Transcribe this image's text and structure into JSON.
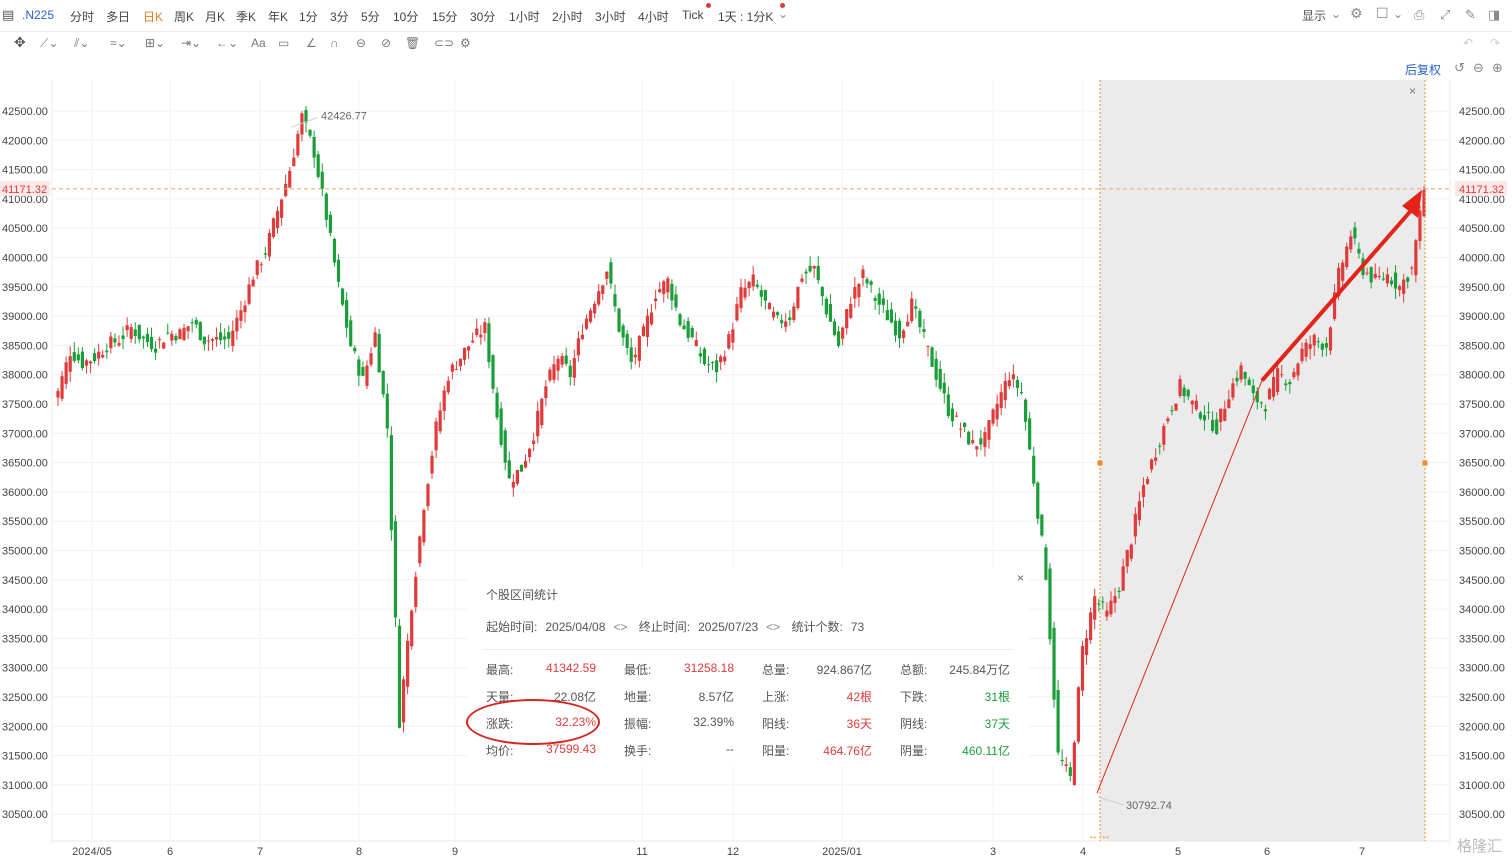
{
  "topbar": {
    "symbol": ".N225",
    "periods": [
      "分时",
      "多日",
      "日K",
      "周K",
      "月K",
      "季K",
      "年K",
      "1分",
      "3分",
      "5分",
      "10分",
      "15分",
      "30分",
      "1小时",
      "2小时",
      "3小时",
      "4小时",
      "Tick",
      "1天 : 1分K"
    ],
    "active_period": "日K",
    "display_label": "显示"
  },
  "toolbar": {
    "restore_label": "后复权"
  },
  "chart_data": {
    "type": "candlestick",
    "x_ticks": [
      "2024/05",
      "6",
      "7",
      "8",
      "9",
      "11",
      "12",
      "2025/01",
      "3",
      "4",
      "5",
      "6",
      "7"
    ],
    "y_ticks": [
      30500,
      31000,
      31500,
      32000,
      32500,
      33000,
      33500,
      34000,
      34500,
      35000,
      35500,
      36000,
      36500,
      37000,
      37500,
      38000,
      38500,
      39000,
      39500,
      40000,
      40500,
      41000,
      41500,
      42000,
      42500
    ],
    "ylim": [
      30300,
      42750
    ],
    "current_price": "41171.32",
    "high_annotation": "42426.77",
    "low_annotation": "30792.74",
    "selected_range": [
      "2025/04/08",
      "2025/07/23"
    ],
    "close_path": [
      [
        0,
        37700
      ],
      [
        1,
        38400
      ],
      [
        2,
        38200
      ],
      [
        3,
        38300
      ],
      [
        4,
        38500
      ],
      [
        5,
        38600
      ],
      [
        6,
        38800
      ],
      [
        7,
        38600
      ],
      [
        8,
        38500
      ],
      [
        9,
        38700
      ],
      [
        10,
        38700
      ],
      [
        11,
        38900
      ],
      [
        12,
        38600
      ],
      [
        13,
        38600
      ],
      [
        14,
        38600
      ],
      [
        15,
        39100
      ],
      [
        16,
        39700
      ],
      [
        17,
        40100
      ],
      [
        18,
        40800
      ],
      [
        19,
        41500
      ],
      [
        20,
        42400
      ],
      [
        21,
        41800
      ],
      [
        22,
        40700
      ],
      [
        23,
        39500
      ],
      [
        24,
        38500
      ],
      [
        25,
        37900
      ],
      [
        26,
        38700
      ],
      [
        27,
        37100
      ],
      [
        28,
        32100
      ],
      [
        29,
        34100
      ],
      [
        30,
        35800
      ],
      [
        31,
        37100
      ],
      [
        32,
        38000
      ],
      [
        33,
        38300
      ],
      [
        34,
        38600
      ],
      [
        35,
        38800
      ],
      [
        36,
        37300
      ],
      [
        37,
        36200
      ],
      [
        38,
        36400
      ],
      [
        39,
        37000
      ],
      [
        40,
        37800
      ],
      [
        41,
        38300
      ],
      [
        42,
        38000
      ],
      [
        43,
        38800
      ],
      [
        44,
        39300
      ],
      [
        45,
        39800
      ],
      [
        46,
        38800
      ],
      [
        47,
        38200
      ],
      [
        48,
        38700
      ],
      [
        49,
        39400
      ],
      [
        50,
        39600
      ],
      [
        51,
        38900
      ],
      [
        52,
        38600
      ],
      [
        53,
        38200
      ],
      [
        54,
        38100
      ],
      [
        55,
        38600
      ],
      [
        56,
        39400
      ],
      [
        57,
        39600
      ],
      [
        58,
        39200
      ],
      [
        59,
        38900
      ],
      [
        60,
        39000
      ],
      [
        61,
        39700
      ],
      [
        62,
        39800
      ],
      [
        63,
        39100
      ],
      [
        64,
        38500
      ],
      [
        65,
        39300
      ],
      [
        66,
        39700
      ],
      [
        67,
        39300
      ],
      [
        68,
        39000
      ],
      [
        69,
        38700
      ],
      [
        70,
        39200
      ],
      [
        71,
        38600
      ],
      [
        72,
        38000
      ],
      [
        73,
        37400
      ],
      [
        74,
        37100
      ],
      [
        75,
        36800
      ],
      [
        76,
        36900
      ],
      [
        77,
        37500
      ],
      [
        78,
        38000
      ],
      [
        79,
        37700
      ],
      [
        80,
        36200
      ],
      [
        81,
        34600
      ],
      [
        82,
        31500
      ],
      [
        83,
        31100
      ],
      [
        84,
        33300
      ],
      [
        85,
        34200
      ],
      [
        86,
        33900
      ],
      [
        87,
        34400
      ],
      [
        88,
        35200
      ],
      [
        89,
        36100
      ],
      [
        90,
        36700
      ],
      [
        91,
        37300
      ],
      [
        92,
        37800
      ],
      [
        93,
        37500
      ],
      [
        94,
        37300
      ],
      [
        95,
        37100
      ],
      [
        96,
        37700
      ],
      [
        97,
        38100
      ],
      [
        98,
        37600
      ],
      [
        99,
        37500
      ],
      [
        100,
        38000
      ],
      [
        101,
        37900
      ],
      [
        102,
        38400
      ],
      [
        103,
        38600
      ],
      [
        104,
        38500
      ],
      [
        105,
        39700
      ],
      [
        106,
        40400
      ],
      [
        107,
        39800
      ],
      [
        108,
        39600
      ],
      [
        109,
        39700
      ],
      [
        110,
        39500
      ],
      [
        111,
        39800
      ],
      [
        112,
        41171
      ]
    ],
    "series": []
  },
  "stats": {
    "title": "个股区间统计",
    "start_label": "起始时间:",
    "start_value": "2025/04/08",
    "end_label": "终止时间:",
    "end_value": "2025/07/23",
    "count_label": "统计个数:",
    "count_value": "73",
    "rows": [
      [
        {
          "l": "最高:",
          "v": "41342.59",
          "c": "red"
        },
        {
          "l": "最低:",
          "v": "31258.18",
          "c": "red"
        },
        {
          "l": "总量:",
          "v": "924.867亿",
          "c": "gray"
        },
        {
          "l": "总额:",
          "v": "245.84万亿",
          "c": "gray"
        }
      ],
      [
        {
          "l": "天量:",
          "v": "22.08亿",
          "c": "gray"
        },
        {
          "l": "地量:",
          "v": "8.57亿",
          "c": "gray"
        },
        {
          "l": "上涨:",
          "v": "42根",
          "c": "red"
        },
        {
          "l": "下跌:",
          "v": "31根",
          "c": "green"
        }
      ],
      [
        {
          "l": "涨跌:",
          "v": "32.23%",
          "c": "red"
        },
        {
          "l": "振幅:",
          "v": "32.39%",
          "c": "gray"
        },
        {
          "l": "阳线:",
          "v": "36天",
          "c": "red"
        },
        {
          "l": "阴线:",
          "v": "37天",
          "c": "green"
        }
      ],
      [
        {
          "l": "均价:",
          "v": "37599.43",
          "c": "red"
        },
        {
          "l": "换手:",
          "v": "--",
          "c": "gray"
        },
        {
          "l": "阳量:",
          "v": "464.76亿",
          "c": "red"
        },
        {
          "l": "阴量:",
          "v": "460.11亿",
          "c": "green"
        }
      ]
    ]
  },
  "colors": {
    "up": "#e03b3b",
    "down": "#1a9e3a",
    "accent": "#f08a24",
    "arrow": "#e3241b"
  },
  "brand": "格隆汇"
}
